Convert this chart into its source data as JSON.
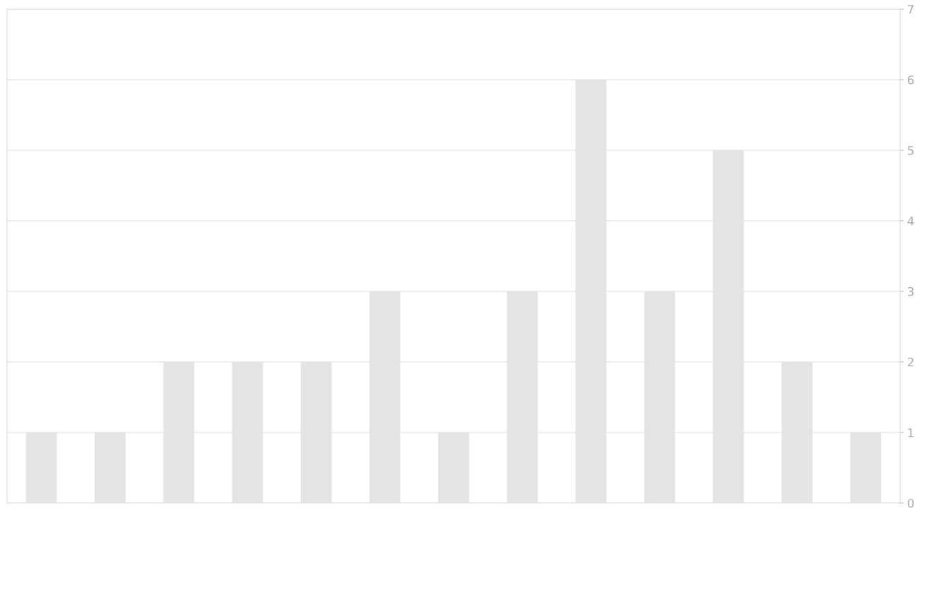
{
  "chart_data": {
    "type": "bar",
    "categories": [
      null,
      null,
      null,
      null,
      null,
      null,
      null,
      null,
      null,
      null,
      null,
      null,
      null
    ],
    "values": [
      1,
      1,
      2,
      2,
      2,
      3,
      1,
      3,
      6,
      3,
      5,
      2,
      1
    ],
    "color": "#e4e4e4",
    "ylim": [
      0,
      7
    ],
    "yticks": [
      0,
      1,
      2,
      3,
      4,
      5,
      6,
      7
    ],
    "grid": "y"
  }
}
